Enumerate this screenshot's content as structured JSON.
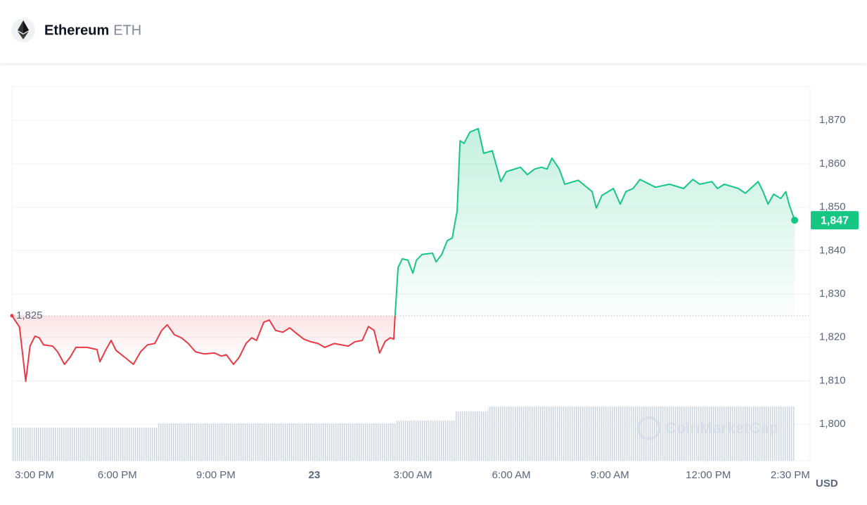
{
  "header": {
    "title": "Ethereum",
    "symbol": "ETH"
  },
  "chart_data": {
    "type": "line",
    "y_axis_label": "USD",
    "watermark": "CoinMarketCap",
    "xlim": [
      14.79,
      39.1
    ],
    "xticks": [
      {
        "value": 15,
        "label": "3:00 PM"
      },
      {
        "value": 18,
        "label": "6:00 PM"
      },
      {
        "value": 21,
        "label": "9:00 PM"
      },
      {
        "value": 24,
        "label": "23"
      },
      {
        "value": 27,
        "label": "3:00 AM"
      },
      {
        "value": 30,
        "label": "6:00 AM"
      },
      {
        "value": 33,
        "label": "9:00 AM"
      },
      {
        "value": 36,
        "label": "12:00 PM"
      },
      {
        "value": 38.5,
        "label": "2:30 PM"
      }
    ],
    "ylim": [
      1791.6,
      1877.8
    ],
    "yticks": [
      {
        "value": 1800,
        "label": "1,800"
      },
      {
        "value": 1810,
        "label": "1,810"
      },
      {
        "value": 1820,
        "label": "1,820"
      },
      {
        "value": 1830,
        "label": "1,830"
      },
      {
        "value": 1840,
        "label": "1,840"
      },
      {
        "value": 1850,
        "label": "1,850"
      },
      {
        "value": 1860,
        "label": "1,860"
      },
      {
        "value": 1870,
        "label": "1,870"
      }
    ],
    "grid": true,
    "reference": {
      "value": 1825,
      "label": "1,825"
    },
    "up_color": "#16c784",
    "down_color": "#ea3943",
    "volume_color": "#cfd6e4",
    "x": [
      14.79,
      15.02,
      15.21,
      15.34,
      15.49,
      15.62,
      15.75,
      16.03,
      16.18,
      16.39,
      16.56,
      16.74,
      17.08,
      17.38,
      17.47,
      17.64,
      17.81,
      17.96,
      18.28,
      18.49,
      18.71,
      18.92,
      19.14,
      19.35,
      19.52,
      19.74,
      19.95,
      20.16,
      20.38,
      20.64,
      20.96,
      21.17,
      21.32,
      21.54,
      21.71,
      21.92,
      22.09,
      22.24,
      22.46,
      22.63,
      22.82,
      23.04,
      23.25,
      23.46,
      23.68,
      23.89,
      24.11,
      24.32,
      24.6,
      25.03,
      25.24,
      25.46,
      25.65,
      25.82,
      25.99,
      26.16,
      26.31,
      26.42,
      26.46,
      26.55,
      26.68,
      26.85,
      27.0,
      27.11,
      27.28,
      27.6,
      27.71,
      27.88,
      28.05,
      28.2,
      28.35,
      28.44,
      28.56,
      28.74,
      28.99,
      29.16,
      29.42,
      29.68,
      29.85,
      30.28,
      30.49,
      30.71,
      30.92,
      31.09,
      31.24,
      31.46,
      31.63,
      32.04,
      32.46,
      32.59,
      32.76,
      33.11,
      33.32,
      33.49,
      33.71,
      33.92,
      34.39,
      34.82,
      35.25,
      35.53,
      35.74,
      36.11,
      36.28,
      36.49,
      36.92,
      37.13,
      37.52,
      37.67,
      37.82,
      37.99,
      38.21,
      38.36,
      38.46,
      38.63
    ],
    "series": [
      {
        "name": "Price",
        "values": [
          1825,
          1822.4,
          1809.9,
          1818.0,
          1820.3,
          1819.9,
          1818.3,
          1818.0,
          1816.7,
          1813.8,
          1815.4,
          1817.7,
          1817.7,
          1817.2,
          1814.4,
          1817.0,
          1819.3,
          1817.0,
          1815.1,
          1813.8,
          1816.7,
          1818.3,
          1818.6,
          1821.6,
          1822.9,
          1820.6,
          1819.9,
          1818.6,
          1816.7,
          1816.2,
          1816.4,
          1815.7,
          1816.0,
          1813.8,
          1815.4,
          1818.6,
          1819.9,
          1819.3,
          1823.5,
          1824.0,
          1821.6,
          1821.2,
          1822.2,
          1820.9,
          1819.6,
          1819.0,
          1818.6,
          1817.7,
          1818.6,
          1818.0,
          1819.0,
          1819.3,
          1822.5,
          1821.6,
          1816.4,
          1819.1,
          1819.9,
          1819.6,
          1825.1,
          1836.1,
          1838.1,
          1837.8,
          1834.8,
          1837.8,
          1839.1,
          1839.4,
          1837.4,
          1839.1,
          1842.3,
          1842.9,
          1849.1,
          1865.3,
          1864.7,
          1867.3,
          1868.1,
          1862.4,
          1863.0,
          1855.9,
          1858.2,
          1859.2,
          1857.5,
          1858.8,
          1859.2,
          1858.8,
          1861.3,
          1858.8,
          1855.3,
          1856.2,
          1853.6,
          1849.8,
          1852.7,
          1854.3,
          1850.7,
          1853.6,
          1854.3,
          1856.4,
          1854.6,
          1855.3,
          1854.3,
          1856.4,
          1855.3,
          1855.9,
          1854.3,
          1855.3,
          1854.3,
          1853.2,
          1855.9,
          1853.6,
          1850.7,
          1853.0,
          1852.0,
          1853.6,
          1850.7,
          1847
        ],
        "value_labels": [
          null,
          null,
          null,
          null,
          null,
          null,
          null,
          null,
          null,
          null,
          null,
          null,
          null,
          null,
          null,
          null,
          null,
          null,
          null,
          null,
          null,
          null,
          null,
          null,
          null,
          null,
          null,
          null,
          null,
          null,
          null,
          null,
          null,
          null,
          null,
          null,
          null,
          null,
          null,
          null,
          null,
          null,
          null,
          null,
          null,
          null,
          null,
          null,
          null,
          null,
          null,
          null,
          null,
          null,
          null,
          null,
          null,
          null,
          null,
          null,
          null,
          null,
          null,
          null,
          null,
          null,
          null,
          null,
          null,
          null,
          null,
          null,
          null,
          null,
          null,
          null,
          null,
          null,
          null,
          null,
          null,
          null,
          null,
          null,
          null,
          null,
          null,
          null,
          null,
          null,
          null,
          null,
          null,
          null,
          null,
          null,
          null,
          null,
          null,
          null,
          null,
          null,
          null,
          null,
          null,
          null,
          null,
          null,
          null,
          null,
          null,
          null,
          null,
          "1,847"
        ]
      }
    ],
    "volume": [
      47,
      47,
      47,
      47,
      47,
      47,
      47,
      47,
      47,
      47,
      47,
      47,
      47,
      47,
      47,
      47,
      47,
      47,
      47,
      47,
      47,
      47,
      47,
      53,
      53,
      53,
      53,
      53,
      53,
      53,
      53,
      53,
      53,
      53,
      53,
      53,
      53,
      53,
      53,
      53,
      53,
      53,
      53,
      53,
      53,
      53,
      53,
      53,
      53,
      53,
      53,
      53,
      53,
      53,
      53,
      53,
      53,
      53,
      53,
      57,
      57,
      57,
      57,
      57,
      57,
      57,
      57,
      57,
      57,
      57,
      70,
      70,
      70,
      70,
      70,
      70,
      77,
      77,
      77,
      77,
      77,
      77,
      77,
      77,
      77,
      77,
      77,
      77,
      77,
      77,
      77,
      77,
      77,
      77,
      77,
      77,
      77,
      77,
      77,
      77,
      77,
      77,
      77,
      77,
      77,
      77,
      77,
      77,
      77,
      77,
      77,
      77,
      77,
      77
    ]
  }
}
